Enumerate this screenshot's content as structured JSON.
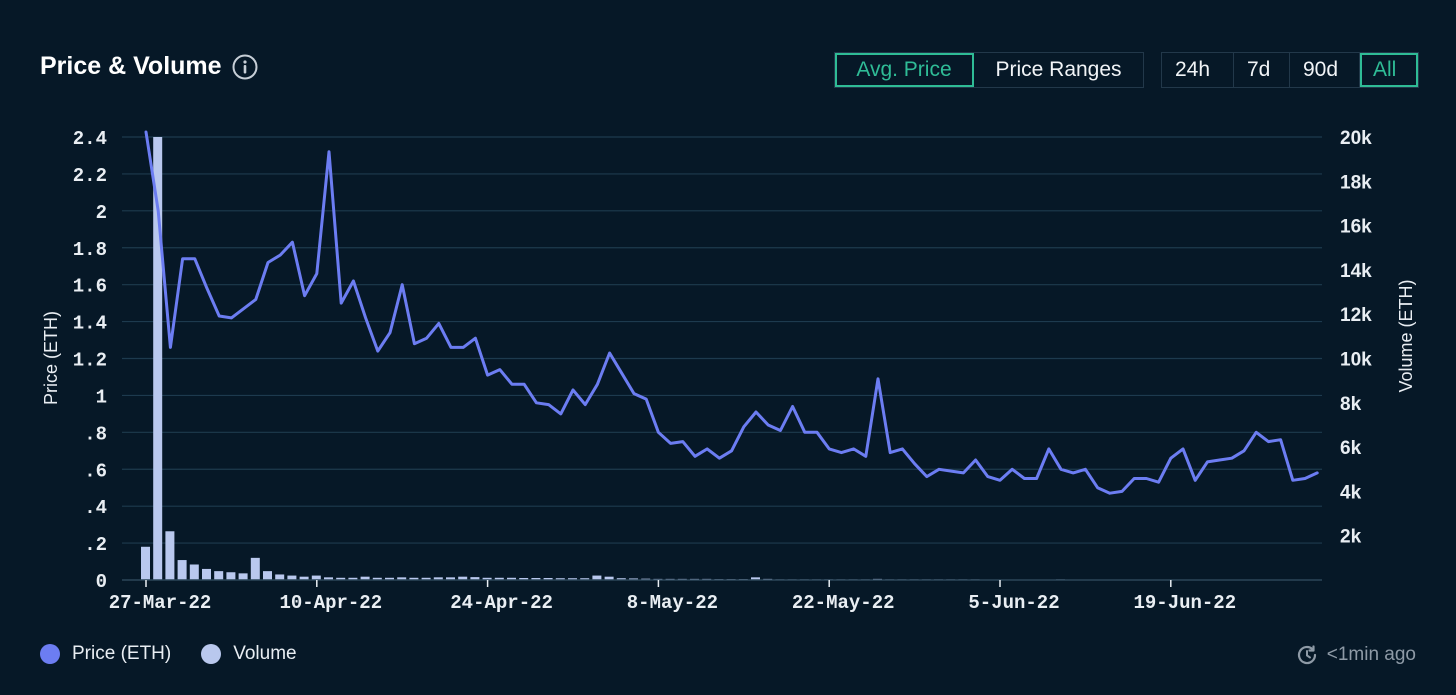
{
  "header": {
    "title": "Price & Volume",
    "mode_tabs": [
      "Avg. Price",
      "Price Ranges"
    ],
    "range_tabs": [
      "24h",
      "7d",
      "90d",
      "All"
    ]
  },
  "legend": {
    "price_label": "Price (ETH)",
    "volume_label": "Volume"
  },
  "status": {
    "updated": "<1min ago"
  },
  "colors": {
    "price": "#6c7df2",
    "volume": "#b9c8ee",
    "accent": "#2fbc96"
  },
  "chart_data": {
    "type": "line+bar",
    "title": "Price & Volume",
    "xlabel": "",
    "ylabel_left": "Price (ETH)",
    "ylabel_right": "Volume (ETH)",
    "ylim_left": [
      0,
      2.4
    ],
    "ylim_right": [
      0,
      20000
    ],
    "left_ticks": [
      "0",
      ".2",
      ".4",
      ".6",
      ".8",
      "1",
      "1.2",
      "1.4",
      "1.6",
      "1.8",
      "2",
      "2.2",
      "2.4"
    ],
    "right_ticks": [
      "2k",
      "4k",
      "6k",
      "8k",
      "10k",
      "12k",
      "14k",
      "16k",
      "18k",
      "20k"
    ],
    "x_tick_labels": [
      {
        "label": "27-Mar-22",
        "day": 0
      },
      {
        "label": "10-Apr-22",
        "day": 14
      },
      {
        "label": "24-Apr-22",
        "day": 28
      },
      {
        "label": "8-May-22",
        "day": 42
      },
      {
        "label": "22-May-22",
        "day": 56
      },
      {
        "label": "5-Jun-22",
        "day": 70
      },
      {
        "label": "19-Jun-22",
        "day": 84
      }
    ],
    "series": [
      {
        "name": "Price (ETH)",
        "kind": "line",
        "axis": "left",
        "values": [
          2.45,
          2.0,
          1.26,
          1.74,
          1.74,
          1.58,
          1.43,
          1.42,
          1.47,
          1.52,
          1.72,
          1.76,
          1.83,
          1.54,
          1.66,
          2.32,
          1.5,
          1.62,
          1.42,
          1.24,
          1.34,
          1.6,
          1.28,
          1.31,
          1.39,
          1.26,
          1.26,
          1.31,
          1.11,
          1.14,
          1.06,
          1.06,
          0.96,
          0.95,
          0.9,
          1.03,
          0.95,
          1.06,
          1.23,
          1.12,
          1.01,
          0.98,
          0.8,
          0.74,
          0.75,
          0.67,
          0.71,
          0.66,
          0.7,
          0.83,
          0.91,
          0.84,
          0.81,
          0.94,
          0.8,
          0.8,
          0.71,
          0.69,
          0.71,
          0.67,
          1.09,
          0.69,
          0.71,
          0.63,
          0.56,
          0.6,
          0.59,
          0.58,
          0.65,
          0.56,
          0.54,
          0.6,
          0.55,
          0.55,
          0.71,
          0.6,
          0.58,
          0.6,
          0.5,
          0.47,
          0.48,
          0.55,
          0.55,
          0.53,
          0.66,
          0.71,
          0.54,
          0.64,
          0.65,
          0.66,
          0.7,
          0.8,
          0.75,
          0.76,
          0.54,
          0.55,
          0.58
        ]
      },
      {
        "name": "Volume",
        "kind": "bar",
        "axis": "right",
        "values": [
          1500,
          20000,
          2200,
          900,
          700,
          500,
          400,
          350,
          300,
          1000,
          400,
          250,
          200,
          150,
          200,
          120,
          100,
          100,
          150,
          100,
          100,
          120,
          100,
          100,
          120,
          120,
          150,
          130,
          100,
          100,
          100,
          90,
          90,
          90,
          80,
          80,
          80,
          200,
          150,
          80,
          70,
          60,
          50,
          50,
          50,
          50,
          50,
          40,
          40,
          40,
          120,
          50,
          30,
          30,
          30,
          30,
          30,
          30,
          30,
          30,
          50,
          30,
          30,
          30,
          30,
          30,
          30,
          30,
          30,
          20,
          20,
          20,
          20,
          20,
          20,
          30,
          20,
          20,
          20,
          20,
          20,
          20,
          20,
          20,
          20,
          20,
          20,
          20,
          20,
          20,
          20,
          20,
          20,
          20,
          20,
          20,
          20
        ]
      }
    ]
  }
}
